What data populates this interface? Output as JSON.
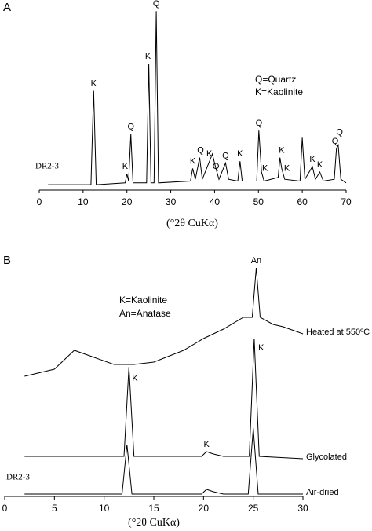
{
  "chart_data": [
    {
      "type": "line",
      "panel": "A",
      "x_label": "(°2θ CuKα)",
      "legend_lines": [
        "Q=Quartz",
        "K=Kaolinite"
      ],
      "sample": "DR2-3",
      "xlim": [
        0,
        70
      ],
      "xticks": [
        0,
        10,
        20,
        30,
        40,
        50,
        60,
        70
      ],
      "ylim": [
        0,
        100
      ],
      "series": [
        {
          "name": null,
          "color": "#000000",
          "x": [
            2,
            11.8,
            12.4,
            13.0,
            19.6,
            20.0,
            20.4,
            20.9,
            21.4,
            24.5,
            25.0,
            25.5,
            26.2,
            26.7,
            27.2,
            34.5,
            35.0,
            35.6,
            36.6,
            37.2,
            38.5,
            39.5,
            40.3,
            41.0,
            42.5,
            43.2,
            45.3,
            45.8,
            46.3,
            49.6,
            50.1,
            50.7,
            51.3,
            54.5,
            54.9,
            55.3,
            56.0,
            59.5,
            60.0,
            60.6,
            62.3,
            63.0,
            64.0,
            64.8,
            67.3,
            67.8,
            68.2,
            68.8,
            70
          ],
          "values": [
            3,
            3,
            55,
            3,
            4,
            9,
            5,
            31,
            4,
            4,
            70,
            4,
            4,
            99,
            4,
            5,
            12,
            6,
            18,
            6,
            14,
            20,
            12,
            6,
            15,
            6,
            5,
            16,
            5,
            5,
            33,
            10,
            5,
            7,
            18,
            12,
            6,
            5,
            29,
            6,
            13,
            6,
            10,
            5,
            6,
            23,
            25,
            6,
            4
          ]
        }
      ],
      "annotations": [
        {
          "text": "K",
          "x": 12.4,
          "y": 55
        },
        {
          "text": "K",
          "x": 19.6,
          "y": 9
        },
        {
          "text": "Q",
          "x": 20.9,
          "y": 31
        },
        {
          "text": "K",
          "x": 24.8,
          "y": 70
        },
        {
          "text": "Q",
          "x": 26.7,
          "y": 99
        },
        {
          "text": "K",
          "x": 35.0,
          "y": 12
        },
        {
          "text": "Q",
          "x": 36.8,
          "y": 18
        },
        {
          "text": "K",
          "x": 38.8,
          "y": 16
        },
        {
          "text": "Q",
          "x": 40.3,
          "y": 9
        },
        {
          "text": "Q",
          "x": 42.5,
          "y": 15
        },
        {
          "text": "K",
          "x": 45.8,
          "y": 16
        },
        {
          "text": "Q",
          "x": 50.1,
          "y": 33
        },
        {
          "text": "K",
          "x": 51.5,
          "y": 8
        },
        {
          "text": "K",
          "x": 55.3,
          "y": 18
        },
        {
          "text": "K",
          "x": 56.5,
          "y": 8
        },
        {
          "text": "K",
          "x": 62.3,
          "y": 13
        },
        {
          "text": "K",
          "x": 64.0,
          "y": 10
        },
        {
          "text": "Q",
          "x": 67.5,
          "y": 23
        },
        {
          "text": "Q",
          "x": 68.5,
          "y": 28
        }
      ]
    },
    {
      "type": "line",
      "panel": "B",
      "x_label": "(°2θ CuKα)",
      "legend_lines": [
        "K=Kaolinite",
        "An=Anatase"
      ],
      "sample": "DR2-3",
      "xlim": [
        0,
        30
      ],
      "xticks": [
        0,
        5,
        10,
        15,
        20,
        25,
        30
      ],
      "ylim": [
        0,
        100
      ],
      "series": [
        {
          "name": "Heated at 550ºC",
          "color": "#000000",
          "x": [
            2,
            5,
            7,
            9,
            11,
            13,
            15,
            18,
            20,
            22,
            24,
            24.9,
            25.3,
            25.7,
            27,
            28,
            30
          ],
          "values": [
            51,
            54,
            62,
            59,
            56,
            56,
            57,
            62,
            67,
            71,
            76,
            76,
            97,
            76,
            73,
            72,
            69
          ]
        },
        {
          "name": "Glycolated",
          "color": "#000000",
          "x": [
            2,
            12.0,
            12.5,
            13.0,
            19.8,
            20.3,
            21,
            22,
            24.6,
            25.1,
            25.6,
            30
          ],
          "values": [
            17,
            17,
            55,
            17,
            17,
            19,
            18,
            17,
            17,
            67,
            17,
            16
          ]
        },
        {
          "name": "Air-dried",
          "color": "#000000",
          "x": [
            2,
            11.8,
            12.3,
            12.8,
            19.8,
            20.3,
            21,
            22,
            24.5,
            25,
            25.5,
            30
          ],
          "values": [
            1,
            1,
            22,
            1,
            1,
            3,
            2,
            1,
            1,
            29,
            1,
            1
          ]
        }
      ],
      "annotations": [
        {
          "text": "K",
          "x": 13.1,
          "y": 47
        },
        {
          "text": "K",
          "x": 20.3,
          "y": 19
        },
        {
          "text": "K",
          "x": 25.8,
          "y": 60
        },
        {
          "text": "An",
          "x": 25.3,
          "y": 97
        }
      ]
    }
  ]
}
